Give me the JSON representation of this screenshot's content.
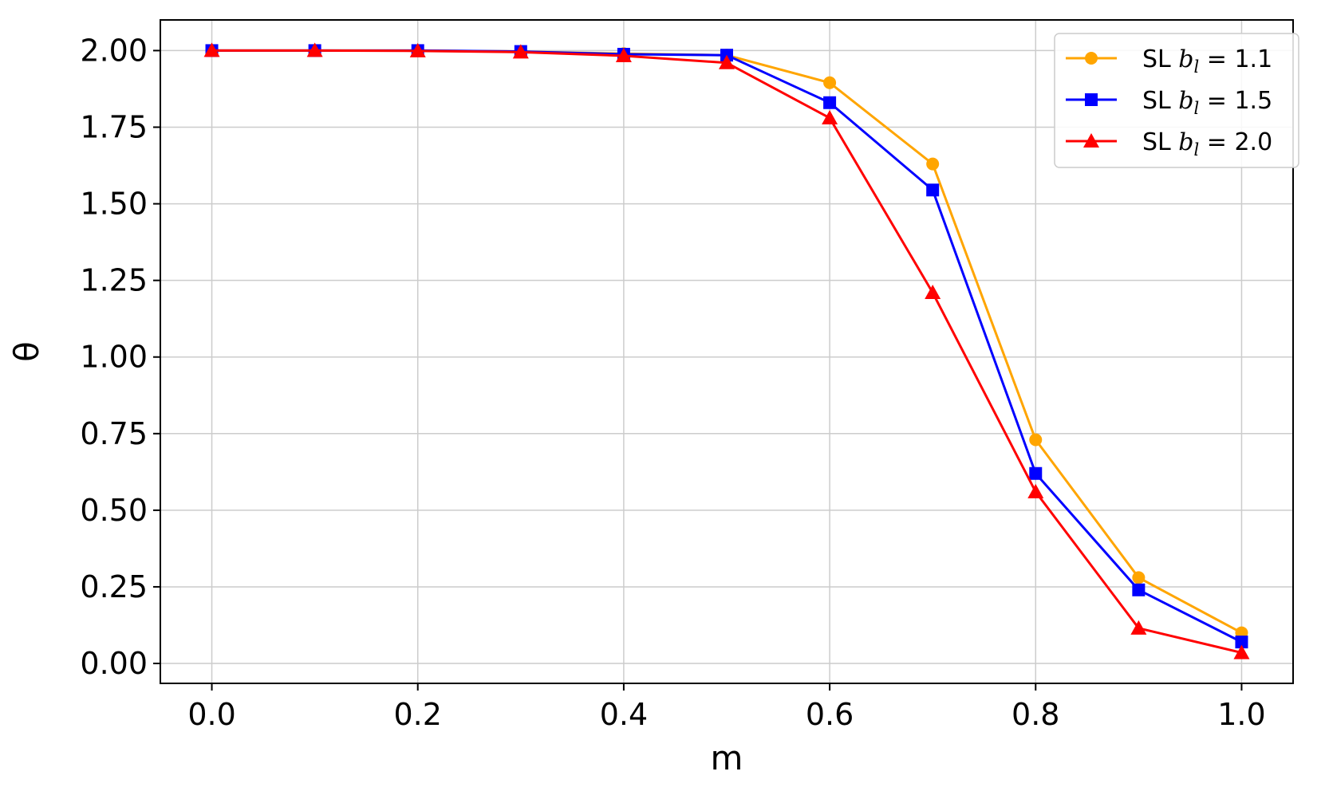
{
  "chart_data": {
    "type": "line",
    "xlabel": "m",
    "ylabel": "θ",
    "xlim": [
      -0.05,
      1.05
    ],
    "ylim": [
      -0.065,
      2.1
    ],
    "xticks": [
      0.0,
      0.2,
      0.4,
      0.6,
      0.8,
      1.0
    ],
    "xtick_labels": [
      "0.0",
      "0.2",
      "0.4",
      "0.6",
      "0.8",
      "1.0"
    ],
    "yticks": [
      0.0,
      0.25,
      0.5,
      0.75,
      1.0,
      1.25,
      1.5,
      1.75,
      2.0
    ],
    "ytick_labels": [
      "0.00",
      "0.25",
      "0.50",
      "0.75",
      "1.00",
      "1.25",
      "1.50",
      "1.75",
      "2.00"
    ],
    "grid": true,
    "legend_position": "top-right",
    "x": [
      0.0,
      0.1,
      0.2,
      0.3,
      0.4,
      0.5,
      0.6,
      0.7,
      0.8,
      0.9,
      1.0
    ],
    "series": [
      {
        "name": "SL b_l = 1.1",
        "legend_prefix": "SL ",
        "legend_var": "b",
        "legend_sub": "l",
        "legend_value": " = 1.1",
        "color": "#FFA500",
        "marker": "circle",
        "values": [
          2.0,
          2.0,
          2.0,
          1.997,
          1.99,
          1.985,
          1.895,
          1.63,
          0.73,
          0.28,
          0.1
        ]
      },
      {
        "name": "SL b_l = 1.5",
        "legend_prefix": "SL ",
        "legend_var": "b",
        "legend_sub": "l",
        "legend_value": " = 1.5",
        "color": "#0000FF",
        "marker": "square",
        "values": [
          2.0,
          2.0,
          2.0,
          1.997,
          1.988,
          1.985,
          1.83,
          1.545,
          0.62,
          0.24,
          0.07
        ]
      },
      {
        "name": "SL b_l = 2.0",
        "legend_prefix": "SL ",
        "legend_var": "b",
        "legend_sub": "l",
        "legend_value": " = 2.0",
        "color": "#FF0000",
        "marker": "triangle",
        "values": [
          2.0,
          2.0,
          1.999,
          1.995,
          1.983,
          1.96,
          1.78,
          1.21,
          0.56,
          0.115,
          0.035
        ]
      }
    ]
  }
}
